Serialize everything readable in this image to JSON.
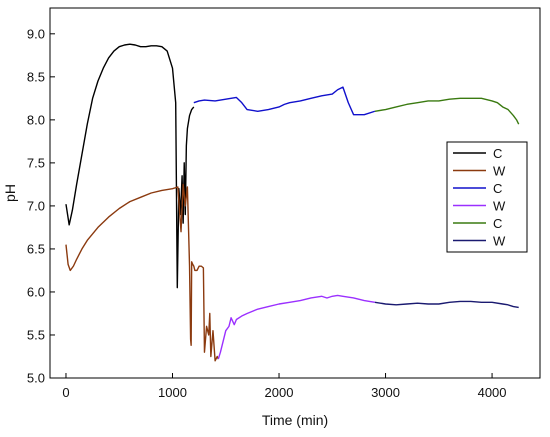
{
  "chart_data": {
    "type": "line",
    "xlabel": "Time (min)",
    "ylabel": "pH",
    "xlim": [
      -150,
      4450
    ],
    "ylim": [
      5.0,
      9.3
    ],
    "x_ticks": [
      0,
      1000,
      2000,
      3000,
      4000
    ],
    "y_ticks": [
      5.0,
      5.5,
      6.0,
      6.5,
      7.0,
      7.5,
      8.0,
      8.5,
      9.0
    ],
    "x_tick_labels": [
      "0",
      "1000",
      "2000",
      "3000",
      "4000"
    ],
    "y_tick_labels": [
      "5.0",
      "5.5",
      "6.0",
      "6.5",
      "7.0",
      "7.5",
      "8.0",
      "8.5",
      "9.0"
    ],
    "grid": false,
    "legend_position": "right",
    "series": [
      {
        "name": "C",
        "color": "#000000",
        "x": [
          0,
          30,
          60,
          100,
          150,
          200,
          250,
          300,
          350,
          400,
          450,
          500,
          550,
          600,
          650,
          700,
          750,
          800,
          850,
          900,
          950,
          1000,
          1030,
          1045,
          1060,
          1075,
          1090,
          1100,
          1110,
          1120,
          1130,
          1140,
          1160,
          1180,
          1200
        ],
        "y": [
          7.02,
          6.78,
          6.95,
          7.25,
          7.6,
          7.95,
          8.25,
          8.45,
          8.6,
          8.72,
          8.8,
          8.85,
          8.87,
          8.88,
          8.87,
          8.85,
          8.85,
          8.86,
          8.86,
          8.85,
          8.8,
          8.6,
          8.2,
          6.05,
          7.2,
          6.9,
          7.35,
          6.8,
          7.5,
          6.9,
          7.7,
          7.9,
          8.05,
          8.12,
          8.15
        ]
      },
      {
        "name": "W",
        "color": "#8B3A0F",
        "x": [
          0,
          20,
          40,
          70,
          100,
          150,
          200,
          300,
          400,
          500,
          600,
          700,
          800,
          900,
          1000,
          1050,
          1080,
          1100,
          1120,
          1140,
          1160,
          1170,
          1175,
          1180,
          1190,
          1200,
          1210,
          1230,
          1250,
          1270,
          1290,
          1300,
          1320,
          1340,
          1350,
          1360,
          1380,
          1400,
          1420,
          1430
        ],
        "y": [
          6.55,
          6.32,
          6.25,
          6.3,
          6.38,
          6.5,
          6.6,
          6.75,
          6.87,
          6.97,
          7.05,
          7.1,
          7.15,
          7.18,
          7.2,
          7.22,
          6.7,
          7.25,
          7.0,
          7.22,
          6.3,
          5.45,
          5.38,
          6.35,
          6.32,
          6.3,
          6.25,
          6.25,
          6.3,
          6.3,
          6.28,
          5.3,
          5.6,
          5.5,
          5.75,
          5.25,
          5.55,
          5.2,
          5.25,
          5.22
        ]
      },
      {
        "name": "C",
        "color": "#1010CC",
        "x": [
          1200,
          1250,
          1300,
          1400,
          1500,
          1600,
          1650,
          1700,
          1800,
          1900,
          2000,
          2050,
          2100,
          2200,
          2300,
          2400,
          2500,
          2550,
          2600,
          2650,
          2700,
          2750,
          2800,
          2900
        ],
        "y": [
          8.2,
          8.22,
          8.23,
          8.22,
          8.24,
          8.26,
          8.2,
          8.12,
          8.1,
          8.12,
          8.15,
          8.18,
          8.2,
          8.22,
          8.25,
          8.28,
          8.3,
          8.35,
          8.38,
          8.2,
          8.06,
          8.06,
          8.06,
          8.1
        ]
      },
      {
        "name": "W",
        "color": "#9B30FF",
        "x": [
          1430,
          1450,
          1480,
          1500,
          1530,
          1550,
          1580,
          1600,
          1650,
          1700,
          1800,
          1900,
          2000,
          2100,
          2200,
          2300,
          2400,
          2450,
          2500,
          2550,
          2600,
          2700,
          2800,
          2900
        ],
        "y": [
          5.22,
          5.3,
          5.45,
          5.55,
          5.6,
          5.7,
          5.62,
          5.68,
          5.72,
          5.75,
          5.8,
          5.83,
          5.86,
          5.88,
          5.9,
          5.93,
          5.95,
          5.93,
          5.95,
          5.96,
          5.95,
          5.93,
          5.9,
          5.88
        ]
      },
      {
        "name": "C",
        "color": "#3A7A10",
        "x": [
          2900,
          3000,
          3100,
          3200,
          3300,
          3400,
          3500,
          3600,
          3700,
          3800,
          3900,
          4000,
          4050,
          4100,
          4150,
          4200,
          4230,
          4250
        ],
        "y": [
          8.1,
          8.12,
          8.15,
          8.18,
          8.2,
          8.22,
          8.22,
          8.24,
          8.25,
          8.25,
          8.25,
          8.22,
          8.2,
          8.15,
          8.12,
          8.05,
          8.0,
          7.95
        ]
      },
      {
        "name": "W",
        "color": "#1A1A70",
        "x": [
          2900,
          3000,
          3100,
          3200,
          3300,
          3400,
          3500,
          3600,
          3700,
          3800,
          3900,
          4000,
          4100,
          4150,
          4200,
          4250
        ],
        "y": [
          5.88,
          5.86,
          5.85,
          5.86,
          5.87,
          5.86,
          5.86,
          5.88,
          5.89,
          5.89,
          5.88,
          5.88,
          5.86,
          5.85,
          5.83,
          5.82
        ]
      }
    ]
  }
}
